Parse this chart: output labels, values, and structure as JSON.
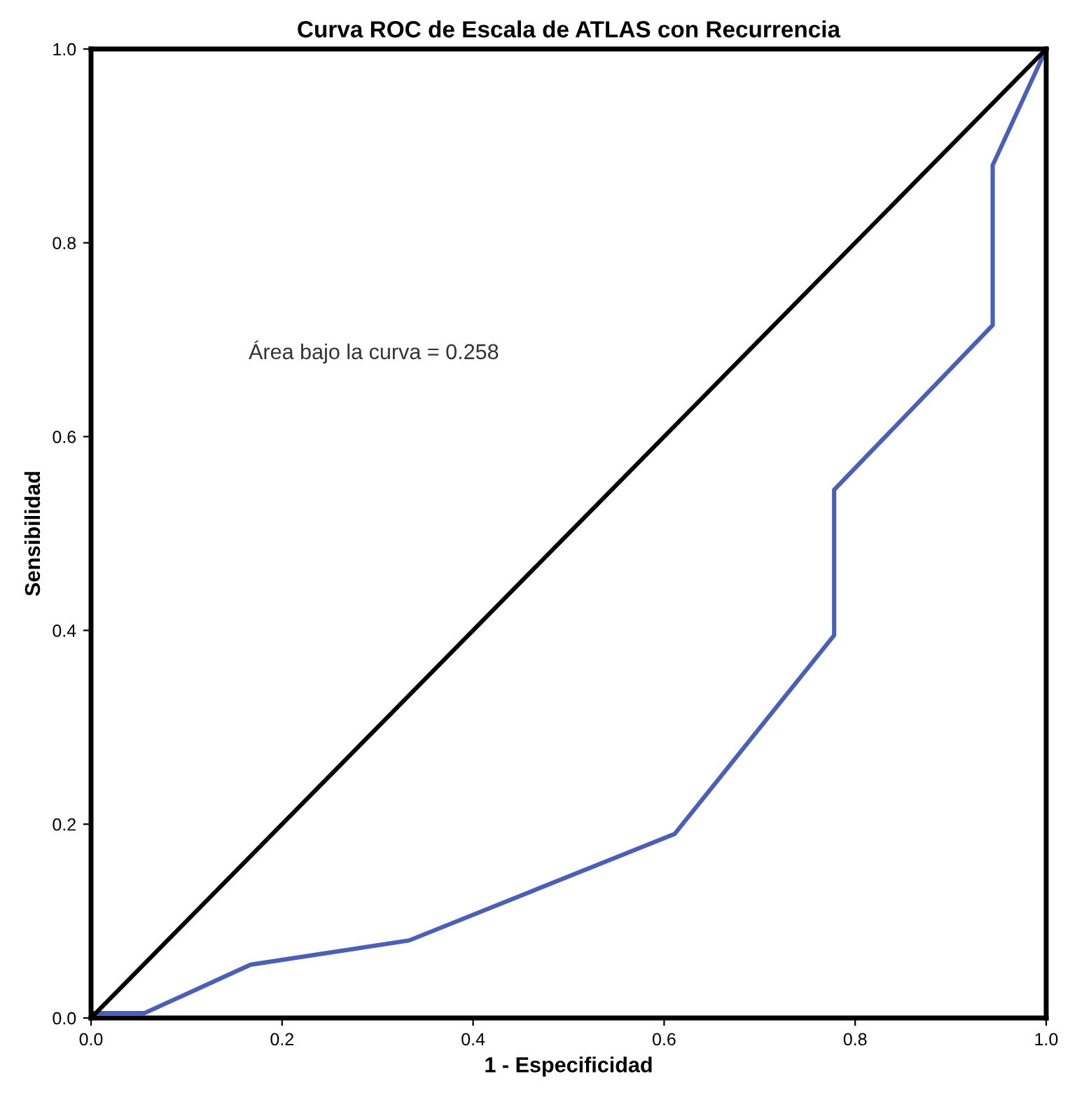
{
  "chart_data": {
    "type": "line",
    "title": "Curva ROC de Escala de ATLAS con Recurrencia",
    "xlabel": "1 - Especificidad",
    "ylabel": "Sensibilidad",
    "series": [
      {
        "color": "#4a5fb5",
        "x": [
          0,
          0,
          0.056,
          0.167,
          0.333,
          0.611,
          0.778,
          0.778,
          0.944,
          0.944,
          1
        ],
        "values": [
          0,
          0.005,
          0.005,
          0.055,
          0.08,
          0.19,
          0.395,
          0.545,
          0.715,
          0.88,
          1
        ]
      },
      {
        "color": "#000000",
        "x": [
          0,
          1
        ],
        "values": [
          0,
          1
        ]
      }
    ],
    "annotations": [
      "Área bajo la curva = 0.258"
    ],
    "xlim": [
      0,
      1
    ],
    "ylim": [
      0,
      1
    ],
    "xticks": [
      {
        "value": 0,
        "label": "0.0"
      },
      {
        "value": 0.2,
        "label": "0.2"
      },
      {
        "value": 0.4,
        "label": "0.4"
      },
      {
        "value": 0.6,
        "label": "0.6"
      },
      {
        "value": 0.8,
        "label": "0.8"
      },
      {
        "value": 1,
        "label": "1.0"
      }
    ],
    "yticks": [
      {
        "value": 0,
        "label": "0.0"
      },
      {
        "value": 0.2,
        "label": "0.2"
      },
      {
        "value": 0.4,
        "label": "0.4"
      },
      {
        "value": 0.6,
        "label": "0.6"
      },
      {
        "value": 0.8,
        "label": "0.8"
      },
      {
        "value": 1,
        "label": "1.0"
      }
    ],
    "grid": false,
    "legend": false
  }
}
